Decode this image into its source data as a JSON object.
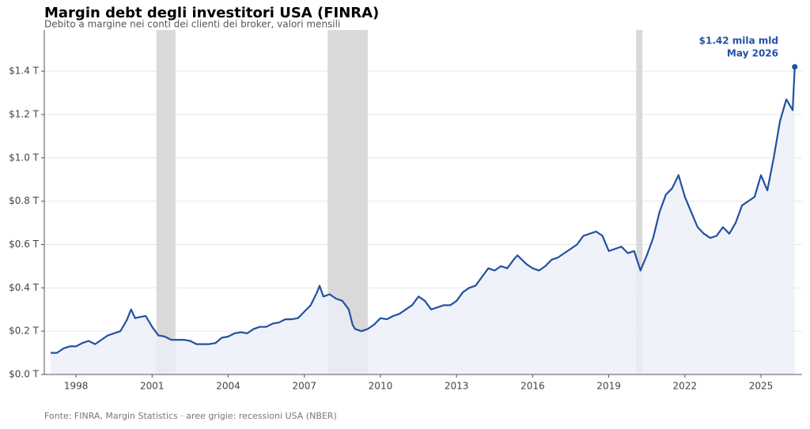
{
  "chart_data": {
    "type": "line",
    "title": "Margin debt degli investitori USA (FINRA)",
    "subtitle": "Debito a margine nei conti dei clienti dei broker, valori mensili",
    "source": "Fonte: FINRA, Margin Statistics  ·  aree grigie: recessioni USA (NBER)",
    "annotation": [
      "$1.42 mila mld",
      "May 2026"
    ],
    "color": "#2251a3",
    "fill": "#eceff8",
    "grid": true,
    "recession_color": "#d9d9d9",
    "recessions": [
      [
        2001.17,
        2001.92
      ],
      [
        2007.92,
        2009.5
      ],
      [
        2020.08,
        2020.33
      ]
    ],
    "x": [
      1997.0,
      1997.25,
      1997.5,
      1997.75,
      1998.0,
      1998.25,
      1998.5,
      1998.75,
      1999.0,
      1999.25,
      1999.5,
      1999.75,
      2000.0,
      2000.17,
      2000.33,
      2000.5,
      2000.75,
      2001.0,
      2001.25,
      2001.5,
      2001.75,
      2002.0,
      2002.25,
      2002.5,
      2002.75,
      2003.0,
      2003.25,
      2003.5,
      2003.75,
      2004.0,
      2004.25,
      2004.5,
      2004.75,
      2005.0,
      2005.25,
      2005.5,
      2005.75,
      2006.0,
      2006.25,
      2006.5,
      2006.75,
      2007.0,
      2007.25,
      2007.5,
      2007.6,
      2007.75,
      2008.0,
      2008.25,
      2008.5,
      2008.75,
      2008.9,
      2009.0,
      2009.25,
      2009.5,
      2009.75,
      2010.0,
      2010.25,
      2010.5,
      2010.75,
      2011.0,
      2011.25,
      2011.5,
      2011.75,
      2012.0,
      2012.25,
      2012.5,
      2012.75,
      2013.0,
      2013.25,
      2013.5,
      2013.75,
      2014.0,
      2014.25,
      2014.5,
      2014.75,
      2015.0,
      2015.25,
      2015.4,
      2015.75,
      2016.0,
      2016.25,
      2016.5,
      2016.75,
      2017.0,
      2017.25,
      2017.5,
      2017.75,
      2018.0,
      2018.25,
      2018.5,
      2018.75,
      2019.0,
      2019.25,
      2019.5,
      2019.75,
      2020.0,
      2020.25,
      2020.5,
      2020.75,
      2021.0,
      2021.25,
      2021.5,
      2021.75,
      2022.0,
      2022.25,
      2022.5,
      2022.75,
      2023.0,
      2023.25,
      2023.5,
      2023.75,
      2024.0,
      2024.25,
      2024.5,
      2024.75,
      2025.0,
      2025.25,
      2025.5,
      2025.75,
      2026.0,
      2026.25,
      2026.33
    ],
    "values": [
      0.1,
      0.1,
      0.12,
      0.13,
      0.13,
      0.145,
      0.155,
      0.14,
      0.16,
      0.18,
      0.19,
      0.2,
      0.25,
      0.3,
      0.26,
      0.265,
      0.27,
      0.22,
      0.18,
      0.175,
      0.16,
      0.16,
      0.16,
      0.155,
      0.14,
      0.14,
      0.14,
      0.145,
      0.17,
      0.175,
      0.19,
      0.195,
      0.19,
      0.21,
      0.22,
      0.22,
      0.235,
      0.24,
      0.255,
      0.255,
      0.26,
      0.29,
      0.32,
      0.38,
      0.41,
      0.36,
      0.37,
      0.35,
      0.34,
      0.3,
      0.23,
      0.21,
      0.2,
      0.21,
      0.23,
      0.26,
      0.255,
      0.27,
      0.28,
      0.3,
      0.32,
      0.36,
      0.34,
      0.3,
      0.31,
      0.32,
      0.32,
      0.34,
      0.38,
      0.4,
      0.41,
      0.45,
      0.49,
      0.48,
      0.5,
      0.49,
      0.53,
      0.55,
      0.51,
      0.49,
      0.48,
      0.5,
      0.53,
      0.54,
      0.56,
      0.58,
      0.6,
      0.64,
      0.65,
      0.66,
      0.64,
      0.57,
      0.58,
      0.59,
      0.56,
      0.57,
      0.48,
      0.55,
      0.63,
      0.75,
      0.83,
      0.86,
      0.92,
      0.82,
      0.75,
      0.68,
      0.65,
      0.63,
      0.64,
      0.68,
      0.65,
      0.7,
      0.78,
      0.8,
      0.82,
      0.92,
      0.85,
      1.0,
      1.17,
      1.27,
      1.22,
      1.42
    ],
    "xlim": [
      1996.75,
      2026.62
    ],
    "ylim": [
      0,
      1.59
    ],
    "xticks": [
      1998,
      2001,
      2004,
      2007,
      2010,
      2013,
      2016,
      2019,
      2022,
      2025
    ],
    "yticks": [
      {
        "value": 0,
        "label": "$0.0 T"
      },
      {
        "value": 0.2,
        "label": "$0.2 T"
      },
      {
        "value": 0.4,
        "label": "$0.4 T"
      },
      {
        "value": 0.6,
        "label": "$0.6 T"
      },
      {
        "value": 0.8,
        "label": "$0.8 T"
      },
      {
        "value": 1.0,
        "label": "$1.0 T"
      },
      {
        "value": 1.2,
        "label": "$1.2 T"
      },
      {
        "value": 1.4,
        "label": "$1.4 T"
      }
    ]
  }
}
